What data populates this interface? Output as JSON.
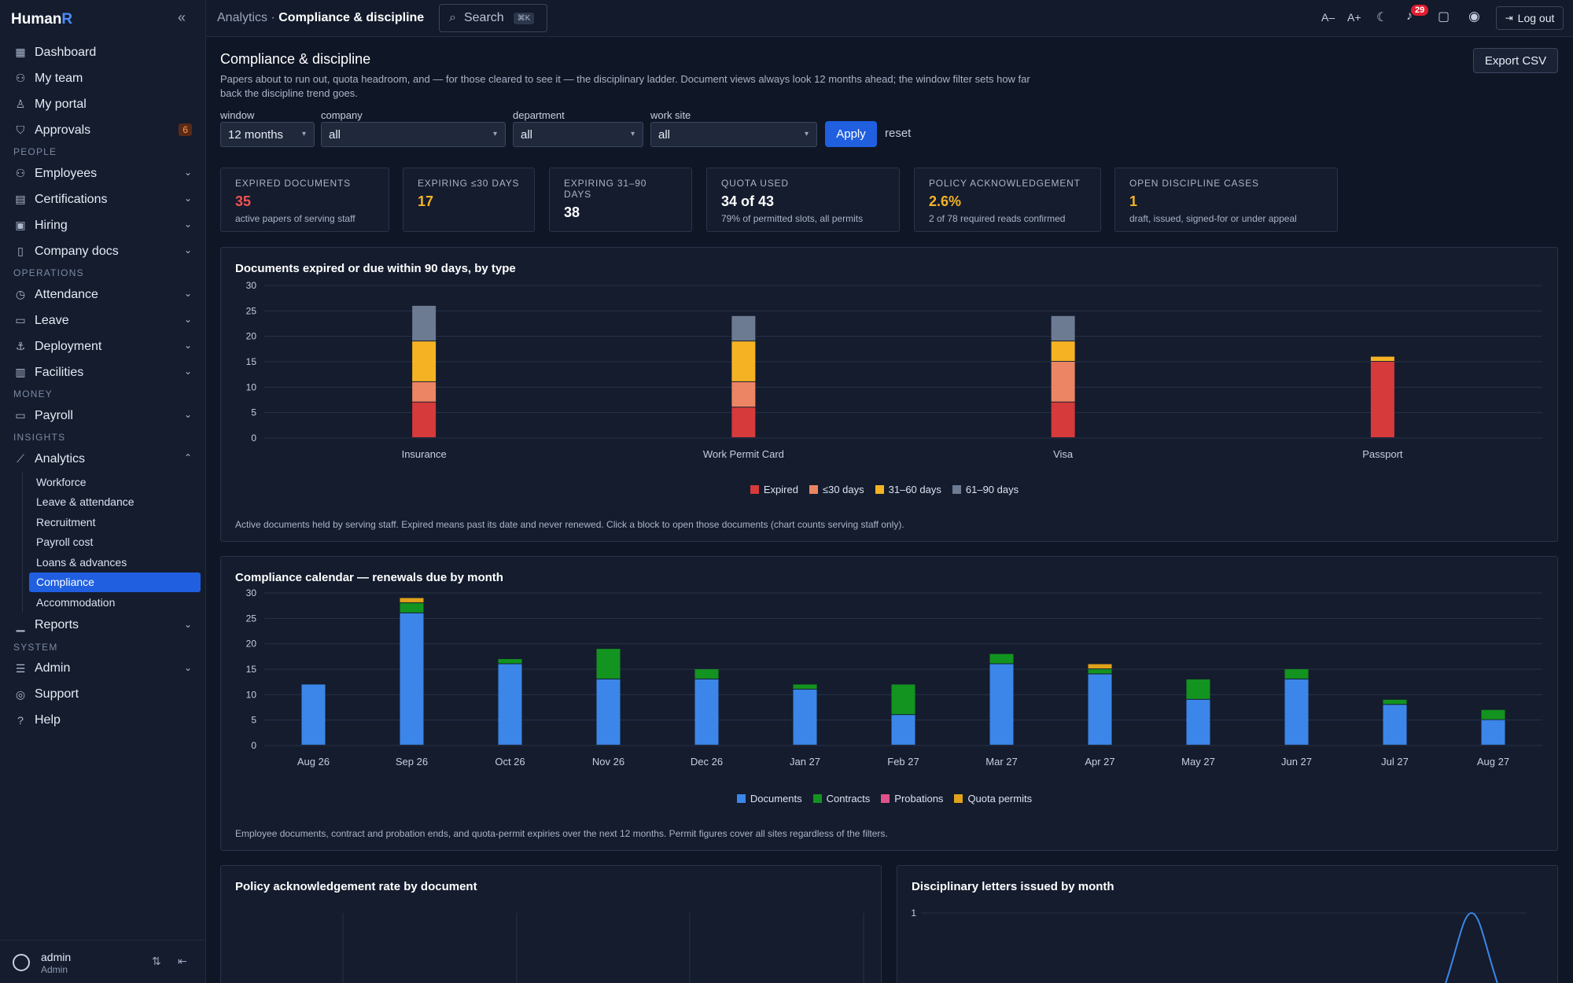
{
  "brand": {
    "name_main": "Human",
    "name_accent": "R"
  },
  "sidebar": {
    "items_top": [
      {
        "label": "Dashboard",
        "icon": "grid-icon"
      },
      {
        "label": "My team",
        "icon": "team-icon"
      },
      {
        "label": "My portal",
        "icon": "person-icon"
      },
      {
        "label": "Approvals",
        "icon": "shield-check-icon",
        "badge": "6"
      }
    ],
    "sections": {
      "people": "PEOPLE",
      "operations": "OPERATIONS",
      "money": "MONEY",
      "insights": "INSIGHTS",
      "system": "SYSTEM"
    },
    "people": [
      {
        "label": "Employees",
        "icon": "users-icon"
      },
      {
        "label": "Certifications",
        "icon": "certificate-icon"
      },
      {
        "label": "Hiring",
        "icon": "briefcase-icon"
      },
      {
        "label": "Company docs",
        "icon": "book-icon"
      }
    ],
    "operations": [
      {
        "label": "Attendance",
        "icon": "clock-icon"
      },
      {
        "label": "Leave",
        "icon": "calendar-icon"
      },
      {
        "label": "Deployment",
        "icon": "anchor-icon"
      },
      {
        "label": "Facilities",
        "icon": "building-icon"
      }
    ],
    "money": [
      {
        "label": "Payroll",
        "icon": "payroll-icon"
      }
    ],
    "analytics": {
      "label": "Analytics",
      "icon": "chart-line-icon",
      "children": [
        "Workforce",
        "Leave & attendance",
        "Recruitment",
        "Payroll cost",
        "Loans & advances",
        "Compliance",
        "Accommodation"
      ],
      "active": "Compliance"
    },
    "reports": {
      "label": "Reports",
      "icon": "bar-chart-icon"
    },
    "system": [
      {
        "label": "Admin",
        "icon": "sliders-icon"
      },
      {
        "label": "Support",
        "icon": "lifebuoy-icon"
      },
      {
        "label": "Help",
        "icon": "help-circle-icon"
      }
    ],
    "user": {
      "name": "admin",
      "role": "Admin"
    }
  },
  "topbar": {
    "crumb_parent": "Analytics",
    "crumb_sep": " · ",
    "crumb_current": "Compliance & discipline",
    "search_label": "Search",
    "search_shortcut": "⌘K",
    "font_decrease": "A–",
    "font_increase": "A+",
    "notifications_count": "29",
    "logout_label": "Log out"
  },
  "page": {
    "title": "Compliance & discipline",
    "description": "Papers about to run out, quota headroom, and — for those cleared to see it — the disciplinary ladder. Document views always look 12 months ahead; the window filter sets how far back the discipline trend goes.",
    "export_label": "Export CSV"
  },
  "filters": {
    "window": {
      "label": "window",
      "value": "12 months"
    },
    "company": {
      "label": "company",
      "value": "all"
    },
    "department": {
      "label": "department",
      "value": "all"
    },
    "work_site": {
      "label": "work site",
      "value": "all"
    },
    "apply_label": "Apply",
    "reset_label": "reset"
  },
  "kpis": [
    {
      "label": "EXPIRED DOCUMENTS",
      "value": "35",
      "sub": "active papers of serving staff",
      "color": "#f05252"
    },
    {
      "label": "EXPIRING ≤30 DAYS",
      "value": "17",
      "sub": "",
      "color": "#f5b324"
    },
    {
      "label": "EXPIRING 31–90 DAYS",
      "value": "38",
      "sub": "",
      "color": "#ffffff"
    },
    {
      "label": "QUOTA USED",
      "value": "34 of 43",
      "sub": "79% of permitted slots, all permits",
      "color": "#ffffff"
    },
    {
      "label": "POLICY ACKNOWLEDGEMENT",
      "value": "2.6%",
      "sub": "2 of 78 required reads confirmed",
      "color": "#f5b324"
    },
    {
      "label": "OPEN DISCIPLINE CASES",
      "value": "1",
      "sub": "draft, issued, signed-for or under appeal",
      "color": "#f5b324"
    }
  ],
  "chart_data": [
    {
      "type": "bar",
      "stacked": true,
      "title": "Documents expired or due within 90 days, by type",
      "categories": [
        "Insurance",
        "Work Permit Card",
        "Visa",
        "Passport"
      ],
      "ylim": [
        0,
        30
      ],
      "yticks": [
        0,
        5,
        10,
        15,
        20,
        25,
        30
      ],
      "grid": true,
      "legend": "bottom-center",
      "series": [
        {
          "name": "Expired",
          "color": "#d63a3a",
          "values": [
            7,
            6,
            7,
            15
          ]
        },
        {
          "name": "≤30 days",
          "color": "#ec8563",
          "values": [
            4,
            5,
            8,
            0
          ]
        },
        {
          "name": "31–60 days",
          "color": "#f5b324",
          "values": [
            8,
            8,
            4,
            1
          ]
        },
        {
          "name": "61–90 days",
          "color": "#6c7a92",
          "values": [
            7,
            5,
            5,
            0
          ]
        }
      ],
      "note": "Active documents held by serving staff. Expired means past its date and never renewed. Click a block to open those documents (chart counts serving staff only)."
    },
    {
      "type": "bar",
      "stacked": true,
      "title": "Compliance calendar — renewals due by month",
      "categories": [
        "Aug 26",
        "Sep 26",
        "Oct 26",
        "Nov 26",
        "Dec 26",
        "Jan 27",
        "Feb 27",
        "Mar 27",
        "Apr 27",
        "May 27",
        "Jun 27",
        "Jul 27",
        "Aug 27"
      ],
      "ylim": [
        0,
        30
      ],
      "yticks": [
        0,
        5,
        10,
        15,
        20,
        25,
        30
      ],
      "grid": true,
      "legend": "bottom-center",
      "series": [
        {
          "name": "Documents",
          "color": "#3b86e8",
          "values": [
            12,
            26,
            16,
            13,
            13,
            11,
            6,
            16,
            14,
            9,
            13,
            8,
            5
          ]
        },
        {
          "name": "Contracts",
          "color": "#13931f",
          "values": [
            0,
            2,
            1,
            6,
            2,
            1,
            6,
            2,
            1,
            4,
            2,
            1,
            2
          ]
        },
        {
          "name": "Probations",
          "color": "#e0528a",
          "values": [
            0,
            0,
            0,
            0,
            0,
            0,
            0,
            0,
            0,
            0,
            0,
            0,
            0
          ]
        },
        {
          "name": "Quota permits",
          "color": "#e0a21a",
          "values": [
            0,
            1,
            0,
            0,
            0,
            0,
            0,
            0,
            1,
            0,
            0,
            0,
            0
          ]
        }
      ],
      "note": "Employee documents, contract and probation ends, and quota-permit expiries over the next 12 months. Permit figures cover all sites regardless of the filters."
    },
    {
      "type": "bar",
      "title": "Policy acknowledgement rate by document"
    },
    {
      "type": "line",
      "title": "Disciplinary letters issued by month",
      "yticks": [
        1
      ],
      "series": [
        {
          "color": "#3b86e8"
        }
      ]
    }
  ]
}
